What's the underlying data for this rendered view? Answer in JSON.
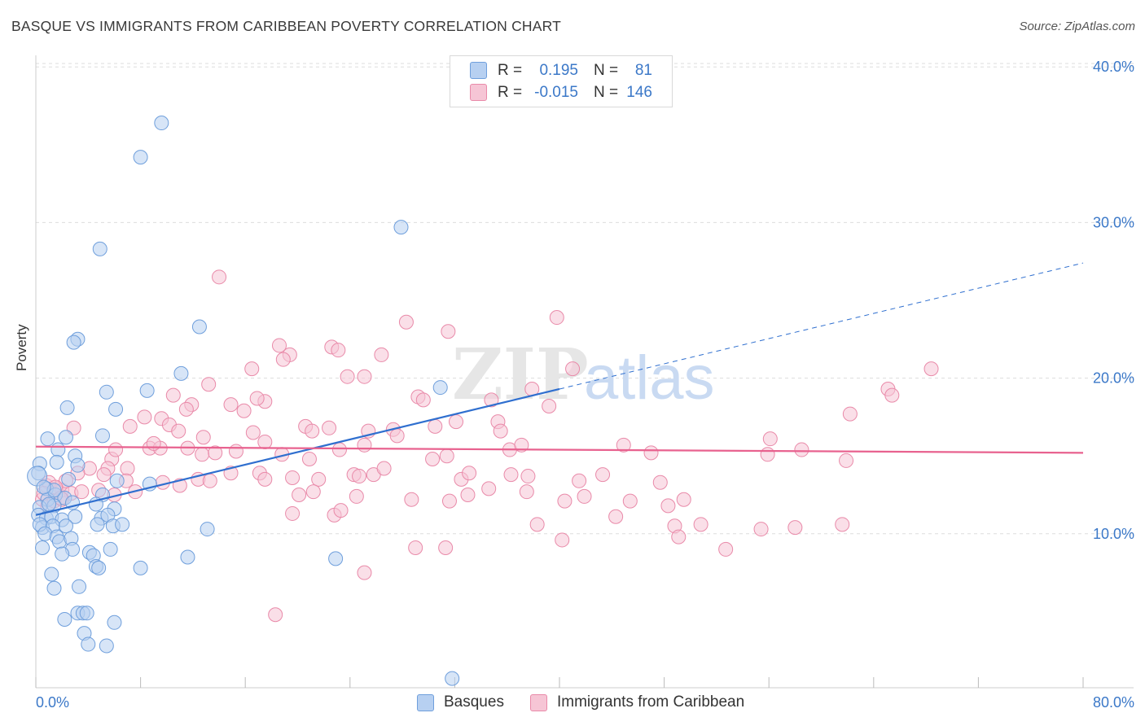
{
  "title": "BASQUE VS IMMIGRANTS FROM CARIBBEAN POVERTY CORRELATION CHART",
  "source": "Source: ZipAtlas.com",
  "watermark": {
    "zip": "ZIP",
    "atlas": "atlas"
  },
  "legend_top": {
    "rows": [
      {
        "r_label": "R =",
        "r_value": "0.195",
        "n_label": "N =",
        "n_value": "81"
      },
      {
        "r_label": "R =",
        "r_value": "-0.015",
        "n_label": "N =",
        "n_value": "146"
      }
    ]
  },
  "legend_bottom": {
    "items": [
      "Basques",
      "Immigrants from Caribbean"
    ]
  },
  "colors": {
    "basques_fill": "#b7d0f1",
    "basques_stroke": "#6f9fdc",
    "basques_line": "#2f6fcf",
    "carib_fill": "#f6c5d5",
    "carib_stroke": "#e98aa9",
    "carib_line": "#e8628f",
    "tick_label": "#3b78c8",
    "grid": "#dddddd"
  },
  "chart_data": {
    "type": "scatter",
    "title": "BASQUE VS IMMIGRANTS FROM CARIBBEAN POVERTY CORRELATION CHART",
    "xlabel": "",
    "ylabel": "Poverty",
    "xlim": [
      0,
      80
    ],
    "ylim": [
      0,
      42
    ],
    "x_tick_labels": [
      "0.0%",
      "80.0%"
    ],
    "y_ticks": [
      10,
      20,
      30,
      40
    ],
    "y_tick_labels": [
      "10.0%",
      "20.0%",
      "30.0%",
      "40.0%"
    ],
    "grid": true,
    "legend_position": "bottom",
    "series": [
      {
        "name": "Basques",
        "r": 0.195,
        "n": 81,
        "trend": {
          "x0": 0,
          "y0": 11.2,
          "x1": 40,
          "y1": 19.3,
          "dashed_to_x": 80,
          "dashed_to_y": 27.4
        },
        "points": [
          [
            9.6,
            36.4
          ],
          [
            8.0,
            34.2
          ],
          [
            27.9,
            29.7
          ],
          [
            4.9,
            28.3
          ],
          [
            12.5,
            23.3
          ],
          [
            3.2,
            22.5
          ],
          [
            2.9,
            22.3
          ],
          [
            11.1,
            20.3
          ],
          [
            8.5,
            19.2
          ],
          [
            5.4,
            19.1
          ],
          [
            2.4,
            18.1
          ],
          [
            6.1,
            18.0
          ],
          [
            30.9,
            19.4
          ],
          [
            0.9,
            16.1
          ],
          [
            2.3,
            16.2
          ],
          [
            5.1,
            16.3
          ],
          [
            1.7,
            15.4
          ],
          [
            3.0,
            15.0
          ],
          [
            0.3,
            14.5
          ],
          [
            1.6,
            14.6
          ],
          [
            0.2,
            13.9
          ],
          [
            3.2,
            14.4
          ],
          [
            2.5,
            13.5
          ],
          [
            6.2,
            13.4
          ],
          [
            8.7,
            13.2
          ],
          [
            0.8,
            12.9
          ],
          [
            1.5,
            12.5
          ],
          [
            0.9,
            12.2
          ],
          [
            2.2,
            12.3
          ],
          [
            5.1,
            12.5
          ],
          [
            0.3,
            11.7
          ],
          [
            1.4,
            11.8
          ],
          [
            2.8,
            12.0
          ],
          [
            4.6,
            11.9
          ],
          [
            6.0,
            11.6
          ],
          [
            0.2,
            11.2
          ],
          [
            0.8,
            11.0
          ],
          [
            1.2,
            11.1
          ],
          [
            2.0,
            10.9
          ],
          [
            3.0,
            11.1
          ],
          [
            5.0,
            11.0
          ],
          [
            5.5,
            11.2
          ],
          [
            0.5,
            10.4
          ],
          [
            0.3,
            10.6
          ],
          [
            1.3,
            10.5
          ],
          [
            2.3,
            10.5
          ],
          [
            4.7,
            10.6
          ],
          [
            5.9,
            10.5
          ],
          [
            6.6,
            10.6
          ],
          [
            13.1,
            10.3
          ],
          [
            0.7,
            10.0
          ],
          [
            1.6,
            9.8
          ],
          [
            1.8,
            9.5
          ],
          [
            2.7,
            9.7
          ],
          [
            0.5,
            9.1
          ],
          [
            2.8,
            9.0
          ],
          [
            5.7,
            9.0
          ],
          [
            2.0,
            8.7
          ],
          [
            4.1,
            8.8
          ],
          [
            4.4,
            8.6
          ],
          [
            11.6,
            8.5
          ],
          [
            22.9,
            8.4
          ],
          [
            4.6,
            7.9
          ],
          [
            4.8,
            7.8
          ],
          [
            1.2,
            7.4
          ],
          [
            8.0,
            7.8
          ],
          [
            1.4,
            6.5
          ],
          [
            3.3,
            6.6
          ],
          [
            3.2,
            4.9
          ],
          [
            3.6,
            4.9
          ],
          [
            3.9,
            4.9
          ],
          [
            2.2,
            4.5
          ],
          [
            6.0,
            4.3
          ],
          [
            3.7,
            3.6
          ],
          [
            4.0,
            2.9
          ],
          [
            5.4,
            2.8
          ],
          [
            31.8,
            0.7
          ],
          [
            0.1,
            13.7
          ],
          [
            1.4,
            12.8
          ],
          [
            0.6,
            13.0
          ],
          [
            1.0,
            11.9
          ]
        ]
      },
      {
        "name": "Immigrants from Caribbean",
        "r": -0.015,
        "n": 146,
        "trend": {
          "x0": 0,
          "y0": 15.6,
          "x1": 80,
          "y1": 15.2
        },
        "points": [
          [
            14.0,
            26.5
          ],
          [
            39.8,
            23.9
          ],
          [
            28.3,
            23.6
          ],
          [
            31.5,
            23.0
          ],
          [
            18.6,
            22.1
          ],
          [
            22.6,
            22.0
          ],
          [
            23.1,
            21.8
          ],
          [
            26.4,
            21.5
          ],
          [
            19.4,
            21.5
          ],
          [
            18.9,
            21.2
          ],
          [
            16.5,
            20.6
          ],
          [
            23.8,
            20.1
          ],
          [
            25.1,
            20.1
          ],
          [
            41.0,
            20.6
          ],
          [
            65.1,
            19.3
          ],
          [
            65.4,
            18.9
          ],
          [
            68.4,
            20.6
          ],
          [
            13.2,
            19.6
          ],
          [
            10.5,
            18.9
          ],
          [
            11.9,
            18.3
          ],
          [
            11.5,
            18.0
          ],
          [
            14.9,
            18.3
          ],
          [
            15.9,
            17.9
          ],
          [
            17.5,
            18.5
          ],
          [
            16.9,
            18.7
          ],
          [
            29.2,
            18.8
          ],
          [
            29.6,
            18.6
          ],
          [
            37.9,
            19.3
          ],
          [
            34.8,
            18.6
          ],
          [
            39.2,
            18.2
          ],
          [
            9.6,
            17.4
          ],
          [
            10.2,
            17.0
          ],
          [
            8.3,
            17.5
          ],
          [
            7.2,
            16.9
          ],
          [
            2.9,
            16.8
          ],
          [
            10.9,
            16.6
          ],
          [
            12.8,
            16.2
          ],
          [
            16.6,
            16.5
          ],
          [
            20.6,
            16.9
          ],
          [
            21.1,
            16.6
          ],
          [
            22.4,
            16.8
          ],
          [
            25.4,
            16.6
          ],
          [
            27.3,
            16.7
          ],
          [
            27.6,
            16.3
          ],
          [
            30.5,
            16.9
          ],
          [
            32.1,
            17.2
          ],
          [
            35.3,
            17.2
          ],
          [
            35.5,
            16.6
          ],
          [
            56.1,
            16.1
          ],
          [
            62.2,
            17.7
          ],
          [
            8.7,
            15.5
          ],
          [
            9.5,
            15.5
          ],
          [
            9.0,
            15.8
          ],
          [
            11.6,
            15.5
          ],
          [
            12.7,
            15.1
          ],
          [
            13.7,
            15.2
          ],
          [
            15.3,
            15.3
          ],
          [
            17.5,
            15.9
          ],
          [
            18.8,
            15.1
          ],
          [
            20.9,
            14.8
          ],
          [
            23.2,
            15.4
          ],
          [
            25.1,
            15.7
          ],
          [
            30.3,
            14.8
          ],
          [
            31.4,
            15.0
          ],
          [
            36.2,
            15.4
          ],
          [
            37.1,
            15.7
          ],
          [
            44.9,
            15.7
          ],
          [
            47.0,
            15.2
          ],
          [
            55.9,
            15.1
          ],
          [
            58.5,
            15.4
          ],
          [
            61.9,
            14.7
          ],
          [
            5.8,
            14.8
          ],
          [
            6.1,
            15.4
          ],
          [
            7.0,
            14.2
          ],
          [
            5.5,
            14.2
          ],
          [
            4.1,
            14.2
          ],
          [
            3.2,
            13.9
          ],
          [
            5.2,
            13.8
          ],
          [
            6.9,
            13.4
          ],
          [
            9.7,
            13.3
          ],
          [
            12.4,
            13.5
          ],
          [
            13.3,
            13.4
          ],
          [
            14.9,
            13.9
          ],
          [
            17.1,
            13.9
          ],
          [
            17.5,
            13.5
          ],
          [
            19.6,
            13.6
          ],
          [
            21.6,
            13.5
          ],
          [
            24.3,
            13.8
          ],
          [
            24.7,
            13.7
          ],
          [
            25.8,
            13.8
          ],
          [
            26.6,
            14.2
          ],
          [
            32.5,
            13.5
          ],
          [
            33.1,
            13.9
          ],
          [
            36.3,
            13.8
          ],
          [
            37.6,
            13.7
          ],
          [
            41.5,
            13.4
          ],
          [
            43.3,
            13.8
          ],
          [
            47.7,
            13.3
          ],
          [
            0.8,
            13.1
          ],
          [
            1.6,
            12.9
          ],
          [
            2.0,
            12.8
          ],
          [
            2.7,
            12.6
          ],
          [
            3.5,
            12.7
          ],
          [
            4.8,
            12.8
          ],
          [
            6.0,
            12.5
          ],
          [
            7.6,
            12.7
          ],
          [
            11.0,
            13.1
          ],
          [
            20.1,
            12.5
          ],
          [
            21.2,
            12.7
          ],
          [
            24.5,
            12.4
          ],
          [
            28.7,
            12.2
          ],
          [
            31.6,
            12.1
          ],
          [
            33.0,
            12.5
          ],
          [
            34.6,
            12.9
          ],
          [
            37.5,
            12.7
          ],
          [
            40.4,
            12.1
          ],
          [
            41.9,
            12.4
          ],
          [
            45.4,
            12.1
          ],
          [
            49.5,
            12.2
          ],
          [
            0.5,
            12.2
          ],
          [
            0.9,
            11.8
          ],
          [
            1.4,
            12.1
          ],
          [
            2.0,
            12.2
          ],
          [
            19.6,
            11.3
          ],
          [
            22.8,
            11.2
          ],
          [
            23.3,
            11.5
          ],
          [
            44.3,
            11.1
          ],
          [
            48.3,
            11.8
          ],
          [
            38.3,
            10.6
          ],
          [
            48.8,
            10.5
          ],
          [
            50.8,
            10.6
          ],
          [
            55.4,
            10.3
          ],
          [
            58.0,
            10.4
          ],
          [
            61.6,
            10.6
          ],
          [
            40.2,
            9.6
          ],
          [
            49.1,
            9.8
          ],
          [
            29.0,
            9.1
          ],
          [
            31.3,
            9.1
          ],
          [
            52.7,
            9.0
          ],
          [
            25.1,
            7.5
          ],
          [
            18.3,
            4.8
          ],
          [
            1.0,
            13.3
          ],
          [
            2.3,
            13.4
          ],
          [
            1.5,
            13.0
          ],
          [
            0.6,
            12.6
          ],
          [
            1.9,
            12.3
          ]
        ]
      }
    ]
  }
}
